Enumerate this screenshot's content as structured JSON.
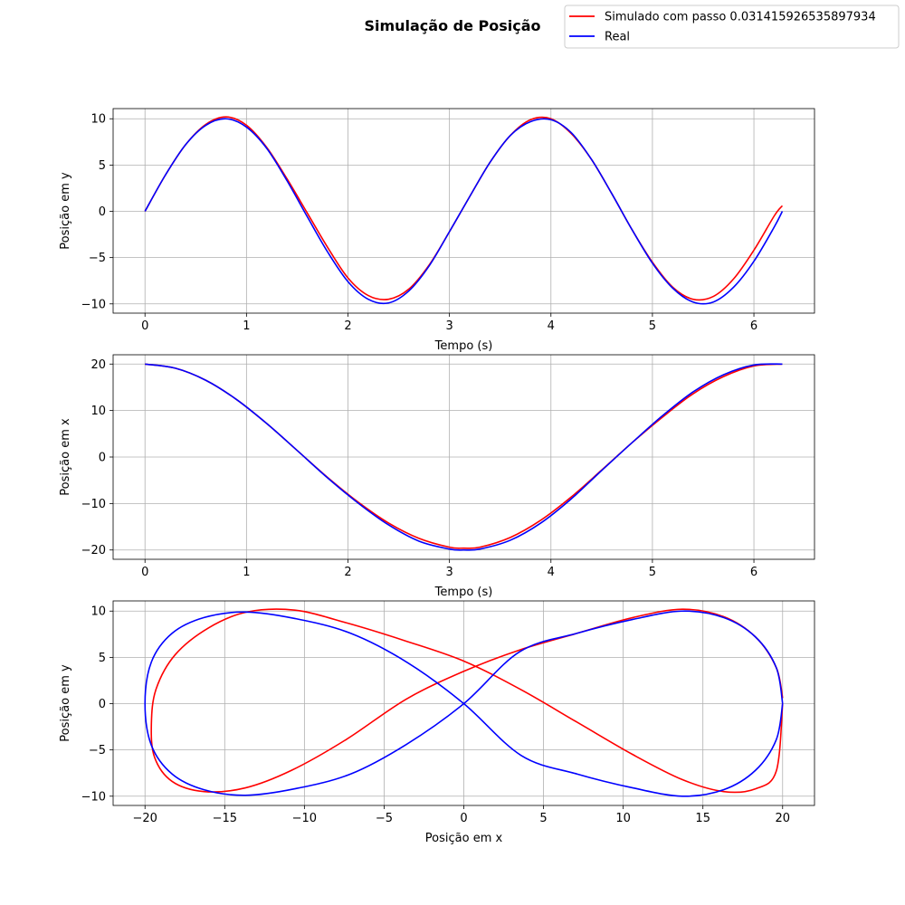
{
  "figure": {
    "title": "Simulação de Posição",
    "legend": {
      "placement": "top-right",
      "entries": [
        {
          "label": "Simulado com passo 0.031415926535897934",
          "color": "#ff0000"
        },
        {
          "label": "Real",
          "color": "#0000ff"
        }
      ]
    }
  },
  "chart_data": [
    {
      "type": "line",
      "xlabel": "Tempo (s)",
      "ylabel": "Posição em y",
      "xlim": [
        -0.314,
        6.597
      ],
      "ylim": [
        -11.0,
        11.1
      ],
      "xticks": [
        0,
        1,
        2,
        3,
        4,
        5,
        6
      ],
      "xtick_labels": [
        "0",
        "1",
        "2",
        "3",
        "4",
        "5",
        "6"
      ],
      "yticks": [
        -10,
        -5,
        0,
        5,
        10
      ],
      "ytick_labels": [
        "−10",
        "−5",
        "0",
        "5",
        "10"
      ],
      "grid": true,
      "series": [
        {
          "name": "Simulado com passo 0.031415926535897934",
          "color": "#ff0000",
          "x": [
            0.0,
            0.2,
            0.4,
            0.6,
            0.8,
            1.0,
            1.2,
            1.4,
            1.6,
            1.8,
            2.0,
            2.2,
            2.4,
            2.6,
            2.8,
            3.0,
            3.2,
            3.4,
            3.6,
            3.8,
            4.0,
            4.2,
            4.4,
            4.6,
            4.8,
            5.0,
            5.2,
            5.4,
            5.6,
            5.8,
            6.0,
            6.2,
            6.28
          ],
          "y": [
            0.0,
            3.9,
            7.2,
            9.4,
            10.2,
            9.3,
            6.9,
            3.5,
            -0.2,
            -3.9,
            -7.2,
            -9.1,
            -9.5,
            -8.4,
            -5.8,
            -2.2,
            1.6,
            5.3,
            8.2,
            9.9,
            10.0,
            8.4,
            5.6,
            1.9,
            -2.0,
            -5.5,
            -8.2,
            -9.5,
            -9.2,
            -7.3,
            -4.2,
            -0.5,
            0.6
          ]
        },
        {
          "name": "Real",
          "color": "#0000ff",
          "x": [
            0.0,
            0.2,
            0.4,
            0.6,
            0.8,
            1.0,
            1.2,
            1.4,
            1.6,
            1.8,
            2.0,
            2.2,
            2.4,
            2.6,
            2.8,
            3.0,
            3.2,
            3.4,
            3.6,
            3.8,
            4.0,
            4.2,
            4.4,
            4.6,
            4.8,
            5.0,
            5.2,
            5.4,
            5.6,
            5.8,
            6.0,
            6.2,
            6.28
          ],
          "y": [
            0.0,
            3.9,
            7.2,
            9.3,
            10.0,
            9.1,
            6.8,
            3.3,
            -0.6,
            -4.4,
            -7.6,
            -9.5,
            -9.9,
            -8.6,
            -5.9,
            -2.2,
            1.6,
            5.3,
            8.2,
            9.7,
            9.9,
            8.5,
            5.6,
            1.9,
            -2.0,
            -5.6,
            -8.3,
            -9.8,
            -9.8,
            -8.2,
            -5.4,
            -1.7,
            0.0
          ]
        }
      ]
    },
    {
      "type": "line",
      "xlabel": "Tempo (s)",
      "ylabel": "Posição em x",
      "xlim": [
        -0.314,
        6.597
      ],
      "ylim": [
        -22.0,
        22.0
      ],
      "xticks": [
        0,
        1,
        2,
        3,
        4,
        5,
        6
      ],
      "xtick_labels": [
        "0",
        "1",
        "2",
        "3",
        "4",
        "5",
        "6"
      ],
      "yticks": [
        -20,
        -10,
        0,
        10,
        20
      ],
      "ytick_labels": [
        "−20",
        "−10",
        "0",
        "10",
        "20"
      ],
      "grid": true,
      "series": [
        {
          "name": "Simulado com passo 0.031415926535897934",
          "color": "#ff0000",
          "x": [
            0.0,
            0.3,
            0.6,
            0.9,
            1.2,
            1.5,
            1.8,
            2.1,
            2.4,
            2.7,
            3.0,
            3.14,
            3.3,
            3.6,
            3.9,
            4.2,
            4.5,
            4.8,
            5.1,
            5.4,
            5.7,
            6.0,
            6.28
          ],
          "y": [
            20.0,
            19.1,
            16.5,
            12.4,
            7.2,
            1.4,
            -4.4,
            -9.7,
            -14.2,
            -17.5,
            -19.4,
            -19.6,
            -19.4,
            -17.3,
            -13.6,
            -8.6,
            -2.8,
            3.1,
            8.6,
            13.6,
            17.3,
            19.6,
            20.0
          ]
        },
        {
          "name": "Real",
          "color": "#0000ff",
          "x": [
            0.0,
            0.3,
            0.6,
            0.9,
            1.2,
            1.5,
            1.8,
            2.1,
            2.4,
            2.7,
            3.0,
            3.14,
            3.3,
            3.6,
            3.9,
            4.2,
            4.5,
            4.8,
            5.1,
            5.4,
            5.7,
            6.0,
            6.28
          ],
          "y": [
            20.0,
            19.1,
            16.5,
            12.4,
            7.2,
            1.4,
            -4.5,
            -9.9,
            -14.6,
            -18.1,
            -19.8,
            -20.0,
            -19.8,
            -17.9,
            -14.2,
            -9.0,
            -2.9,
            3.1,
            8.9,
            14.0,
            17.7,
            19.8,
            20.0
          ]
        }
      ]
    },
    {
      "type": "line",
      "xlabel": "Posição em x",
      "ylabel": "Posição em y",
      "xlim": [
        -22.0,
        22.0
      ],
      "ylim": [
        -11.0,
        11.1
      ],
      "xticks": [
        -20,
        -15,
        -10,
        -5,
        0,
        5,
        10,
        15,
        20
      ],
      "xtick_labels": [
        "−20",
        "−15",
        "−10",
        "−5",
        "0",
        "5",
        "10",
        "15",
        "20"
      ],
      "yticks": [
        -10,
        -5,
        0,
        5,
        10
      ],
      "ytick_labels": [
        "−10",
        "−5",
        "0",
        "5",
        "10"
      ],
      "grid": true,
      "series": [
        {
          "name": "Simulado com passo 0.031415926535897934",
          "color": "#ff0000",
          "x": [
            20.0,
            19.6,
            18.3,
            16.3,
            13.7,
            10.6,
            7.1,
            3.5,
            0.0,
            -3.6,
            -7.4,
            -10.8,
            -13.7,
            -16.3,
            -18.3,
            -19.4,
            -19.6,
            -19.3,
            -18.1,
            -16.0,
            -13.6,
            -10.6,
            -7.3,
            -3.7,
            0.0,
            3.6,
            7.1,
            10.6,
            13.7,
            16.3,
            18.3,
            19.6,
            20.0
          ],
          "y": [
            0.6,
            3.9,
            7.2,
            9.4,
            10.2,
            9.3,
            7.6,
            5.8,
            3.5,
            0.5,
            -3.9,
            -7.2,
            -9.1,
            -9.5,
            -8.4,
            -5.8,
            -2.2,
            1.6,
            5.3,
            8.2,
            9.9,
            10.1,
            8.7,
            6.8,
            4.6,
            1.5,
            -2.0,
            -5.5,
            -8.2,
            -9.5,
            -9.2,
            -7.3,
            0.0
          ]
        },
        {
          "name": "Real",
          "color": "#0000ff",
          "x": [
            20.0,
            19.6,
            18.3,
            16.3,
            13.7,
            10.6,
            7.1,
            3.5,
            0.0,
            -3.6,
            -7.1,
            -10.6,
            -13.7,
            -16.3,
            -18.3,
            -19.6,
            -20.0,
            -19.6,
            -18.3,
            -16.3,
            -13.7,
            -10.6,
            -7.1,
            -3.5,
            0.0,
            3.6,
            7.1,
            10.6,
            13.7,
            16.3,
            18.3,
            19.6,
            20.0
          ],
          "y": [
            0.0,
            3.9,
            7.2,
            9.3,
            10.0,
            9.1,
            7.6,
            5.6,
            0.0,
            -4.4,
            -7.6,
            -9.2,
            -9.9,
            -9.3,
            -7.6,
            -4.5,
            0.0,
            4.5,
            7.6,
            9.3,
            9.9,
            9.2,
            7.6,
            4.4,
            0.0,
            -5.6,
            -7.6,
            -9.1,
            -10.0,
            -9.3,
            -7.2,
            -3.9,
            0.0
          ]
        }
      ]
    }
  ]
}
